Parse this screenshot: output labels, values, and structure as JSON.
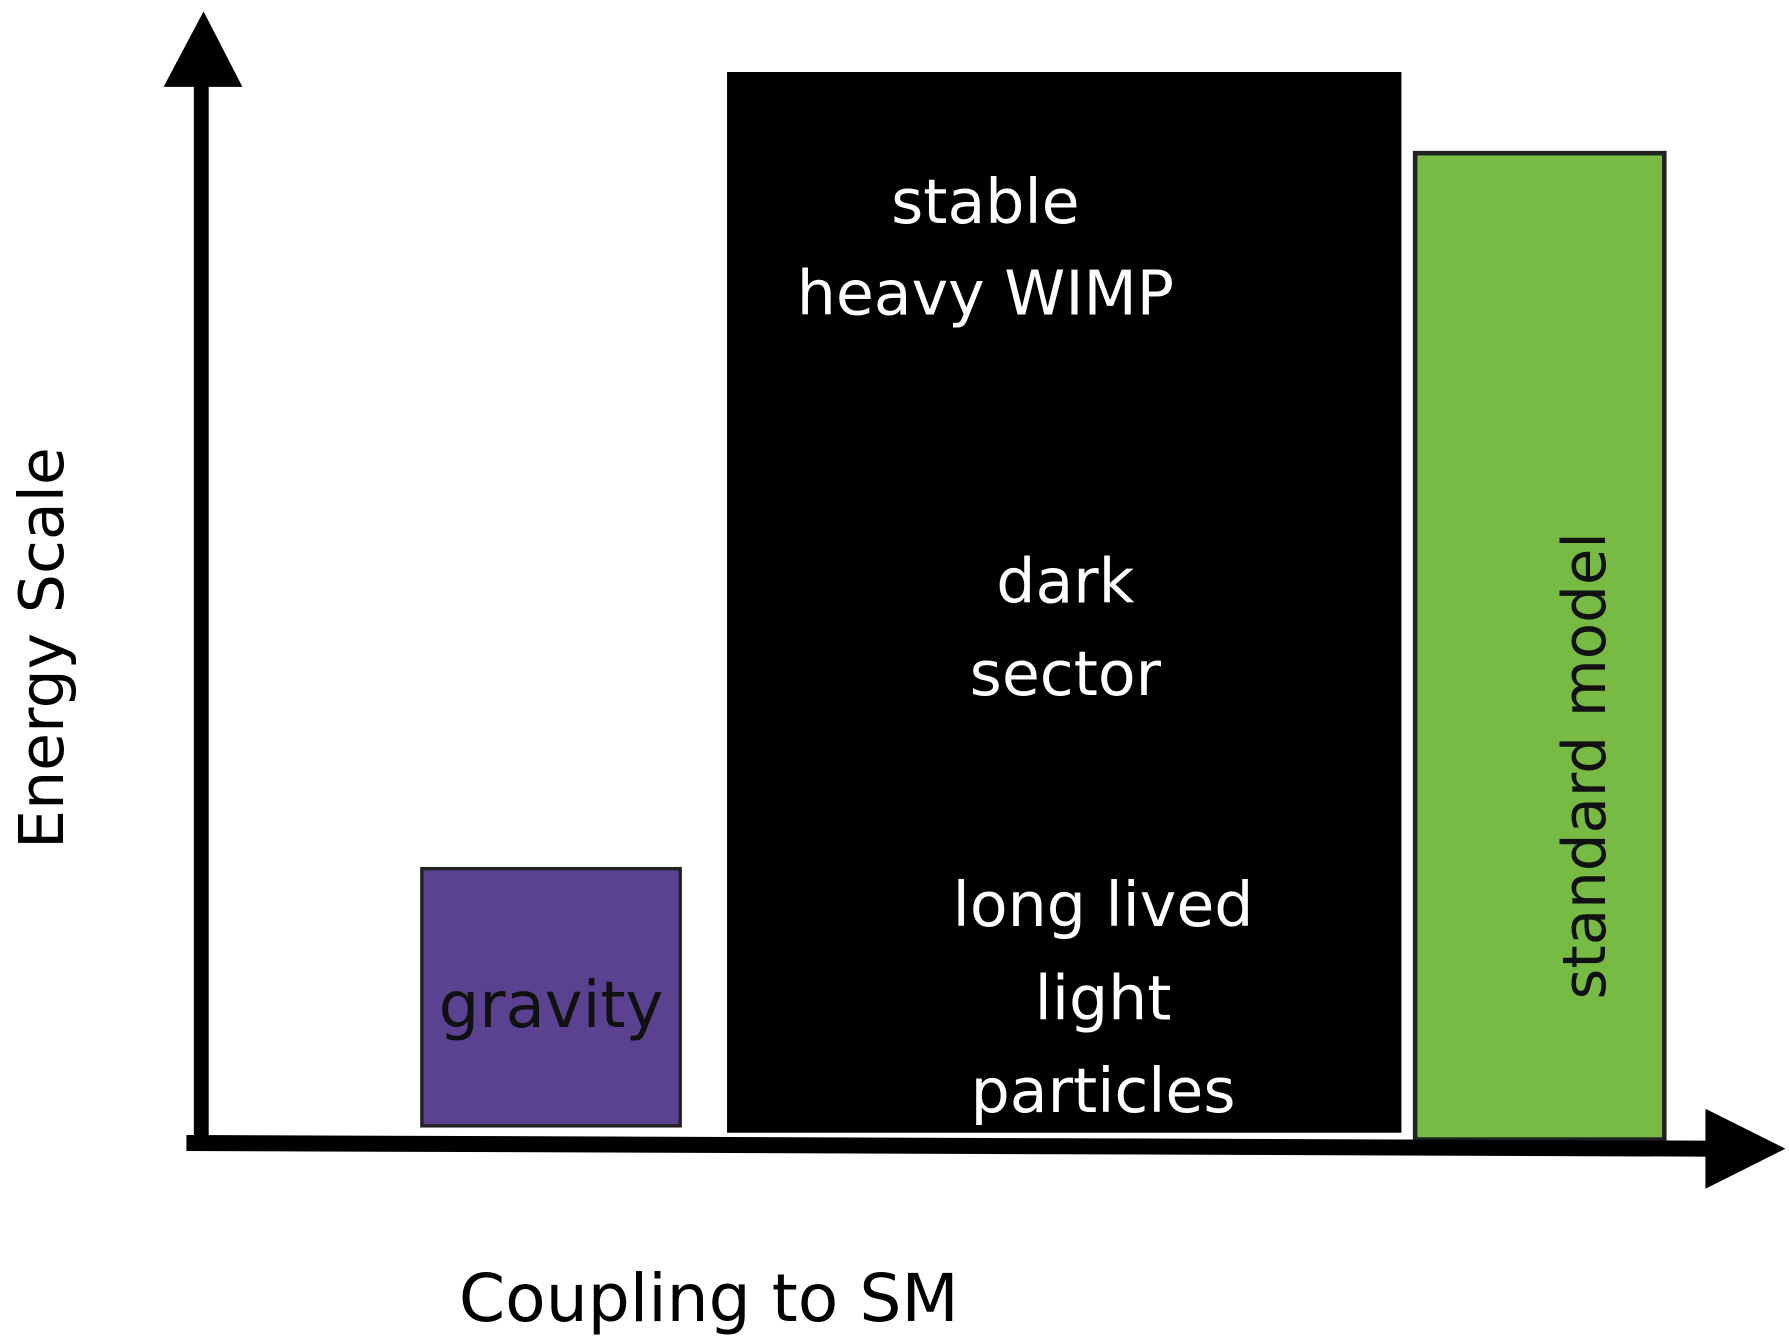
{
  "axes": {
    "y_label": "Energy Scale",
    "x_label": "Coupling to SM"
  },
  "boxes": [
    {
      "label": "gravity"
    },
    {
      "lines": [
        "stable",
        "heavy WIMP",
        "dark",
        "sector",
        "long lived",
        "light",
        "particles"
      ]
    },
    {
      "label": "standard model"
    }
  ]
}
